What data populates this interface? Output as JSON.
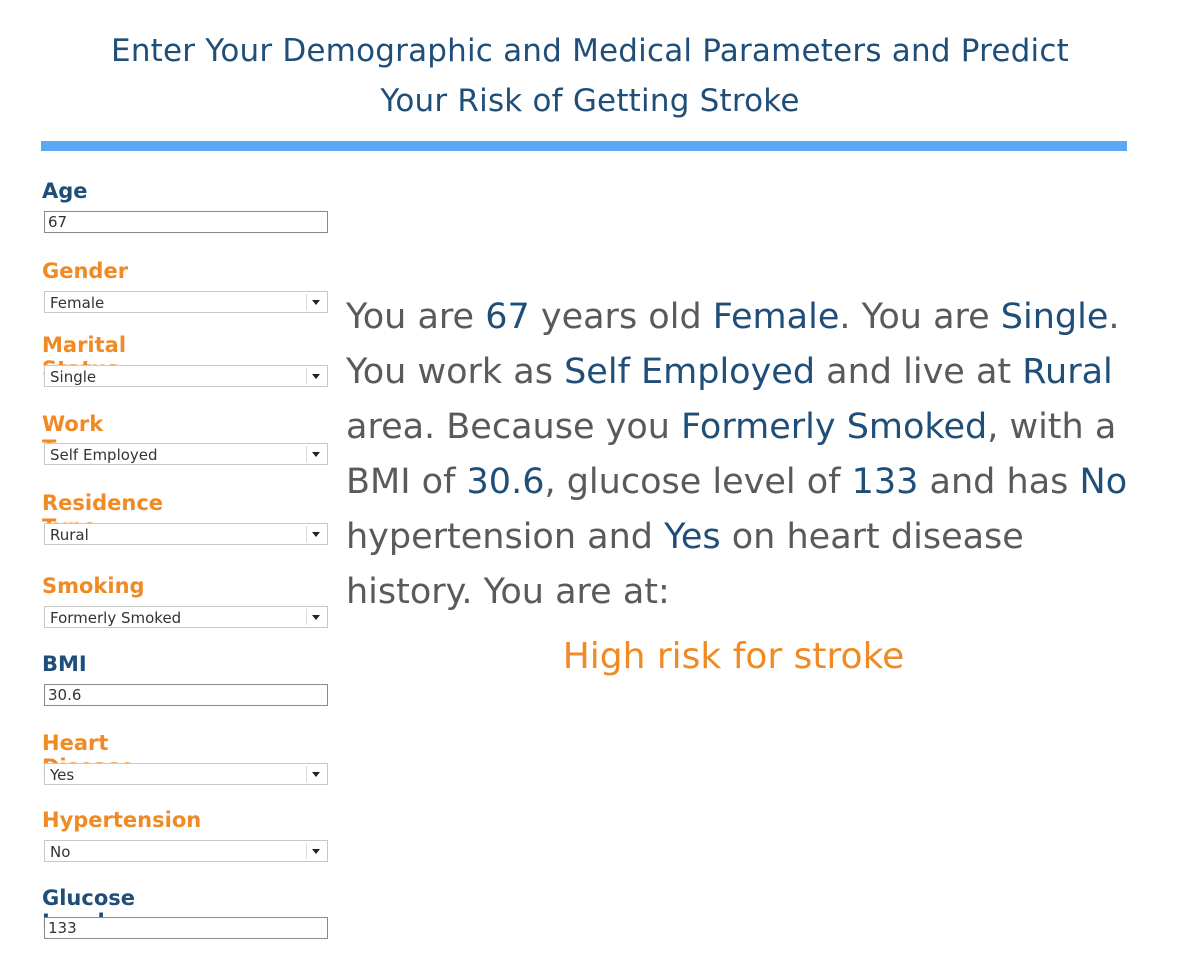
{
  "title": {
    "line1": "Enter Your Demographic and Medical Parameters and Predict",
    "line2": "Your Risk of Getting Stroke"
  },
  "colors": {
    "title": "#1f4e79",
    "accent_orange": "#f08a24",
    "rule_blue": "#5ba8f5",
    "body_gray": "#5a5a5a"
  },
  "form": {
    "age": {
      "label": "Age",
      "value": "67"
    },
    "gender": {
      "label": "Gender",
      "value": "Female"
    },
    "marital_status": {
      "label": "Marital Status",
      "value": "Single"
    },
    "work_type": {
      "label": "Work Type",
      "value": "Self Employed"
    },
    "residence_type": {
      "label": "Residence Type",
      "value": "Rural"
    },
    "smoking": {
      "label": "Smoking",
      "value": "Formerly Smoked"
    },
    "bmi": {
      "label": "BMI",
      "value": "30.6"
    },
    "heart_disease": {
      "label": "Heart Disease",
      "value": "Yes"
    },
    "hypertension": {
      "label": "Hypertension",
      "value": "No"
    },
    "glucose_level": {
      "label": "Glucose Level",
      "value": "133"
    }
  },
  "summary": {
    "t1": "You are ",
    "age": "67",
    "t2": " years old ",
    "gender": "Female",
    "t3": ". You are ",
    "marital": "Single",
    "t4": ". You work as ",
    "work": "Self Employed",
    "t5": " and live at ",
    "residence": "Rural",
    "t6": " area. Because you ",
    "smoking": "Formerly Smoked",
    "t7": ", with a BMI of ",
    "bmi": "30.6",
    "t8": ", glucose level of ",
    "glucose": "133",
    "t9": " and has ",
    "hypertension": "No",
    "t10": " hypertension and ",
    "heart": "Yes",
    "t11": " on heart disease history. You are at:"
  },
  "result": "High risk for stroke"
}
